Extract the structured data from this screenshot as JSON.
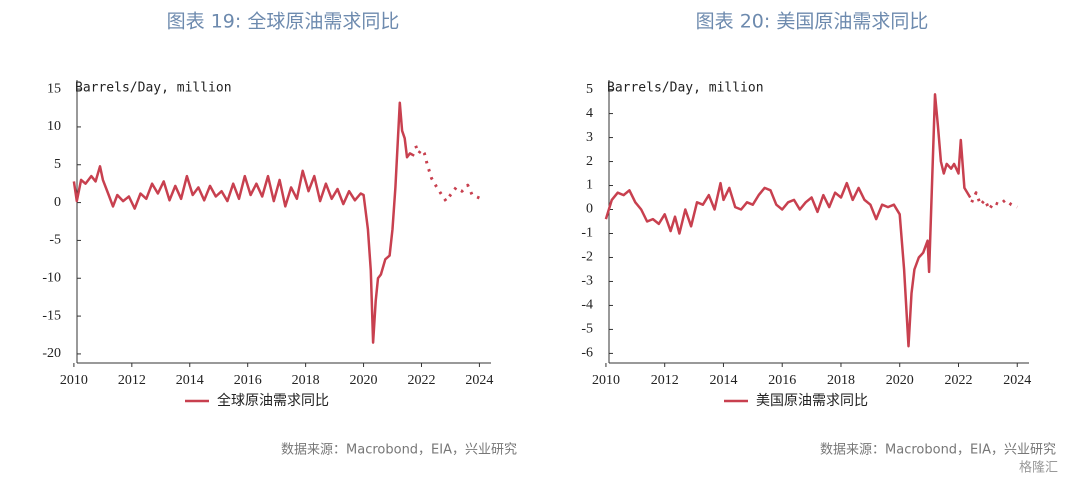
{
  "chart_data": [
    {
      "type": "line",
      "title": "图表 19: 全球原油需求同比",
      "y_label": "Barrels/Day, million",
      "source": "数据来源：Macrobond，EIA，兴业研究",
      "xlim": [
        2009.9,
        2024.4
      ],
      "xticks": [
        2010,
        2012,
        2014,
        2016,
        2018,
        2020,
        2022,
        2024
      ],
      "ylim": [
        -21.2,
        16.2
      ],
      "yticks": [
        15,
        10,
        5,
        0,
        -5,
        -10,
        -15,
        -20
      ],
      "series": [
        {
          "name": "全球原油需求同比",
          "color": "#c8404f",
          "style": "solid",
          "x": [
            2010.0,
            2010.1,
            2010.25,
            2010.4,
            2010.6,
            2010.75,
            2010.9,
            2011.0,
            2011.2,
            2011.35,
            2011.5,
            2011.7,
            2011.9,
            2012.1,
            2012.3,
            2012.5,
            2012.7,
            2012.9,
            2013.1,
            2013.3,
            2013.5,
            2013.7,
            2013.9,
            2014.1,
            2014.3,
            2014.5,
            2014.7,
            2014.9,
            2015.1,
            2015.3,
            2015.5,
            2015.7,
            2015.9,
            2016.1,
            2016.3,
            2016.5,
            2016.7,
            2016.9,
            2017.1,
            2017.3,
            2017.5,
            2017.7,
            2017.9,
            2018.1,
            2018.3,
            2018.5,
            2018.7,
            2018.9,
            2019.1,
            2019.3,
            2019.5,
            2019.7,
            2019.9,
            2020.0,
            2020.15,
            2020.25,
            2020.33,
            2020.42,
            2020.5,
            2020.6,
            2020.75,
            2020.9,
            2021.0,
            2021.1,
            2021.25,
            2021.33,
            2021.42,
            2021.5,
            2021.6,
            2021.75
          ],
          "values": [
            2.8,
            0.2,
            3.0,
            2.5,
            3.5,
            2.8,
            4.8,
            3.0,
            1.0,
            -0.5,
            1.0,
            0.2,
            0.8,
            -0.8,
            1.2,
            0.5,
            2.5,
            1.2,
            2.8,
            0.3,
            2.2,
            0.5,
            3.5,
            1.0,
            2.0,
            0.3,
            2.2,
            0.8,
            1.5,
            0.2,
            2.5,
            0.5,
            3.5,
            1.0,
            2.5,
            0.8,
            3.5,
            0.2,
            3.0,
            -0.5,
            2.0,
            0.5,
            4.2,
            1.5,
            3.5,
            0.2,
            2.5,
            0.5,
            1.8,
            -0.2,
            1.5,
            0.3,
            1.2,
            1.0,
            -3.5,
            -9.0,
            -18.5,
            -13.0,
            -10.0,
            -9.5,
            -7.5,
            -7.0,
            -3.5,
            2.0,
            13.2,
            9.5,
            8.5,
            6.0,
            6.5,
            6.2
          ]
        },
        {
          "color": "#c8404f",
          "style": "dotted",
          "x": [
            2021.8,
            2021.9,
            2022.0,
            2022.1,
            2022.2,
            2022.35,
            2022.5,
            2022.7,
            2022.85,
            2023.0,
            2023.2,
            2023.4,
            2023.6,
            2023.75,
            2024.0
          ],
          "values": [
            7.5,
            6.5,
            7.0,
            6.5,
            5.0,
            3.2,
            2.2,
            1.0,
            0.2,
            1.0,
            2.0,
            1.5,
            2.3,
            1.0,
            0.6
          ]
        }
      ]
    },
    {
      "type": "line",
      "title": "图表 20: 美国原油需求同比",
      "y_label": "Barrels/Day, million",
      "source": "数据来源：Macrobond，EIA，兴业研究",
      "xlim": [
        2009.9,
        2024.4
      ],
      "xticks": [
        2010,
        2012,
        2014,
        2016,
        2018,
        2020,
        2022,
        2024
      ],
      "ylim": [
        -6.4,
        5.4
      ],
      "yticks": [
        5,
        4,
        3,
        2,
        1,
        0,
        -1,
        -2,
        -3,
        -4,
        -5,
        -6
      ],
      "series": [
        {
          "name": "美国原油需求同比",
          "color": "#c8404f",
          "style": "solid",
          "x": [
            2010.0,
            2010.2,
            2010.4,
            2010.6,
            2010.8,
            2011.0,
            2011.2,
            2011.4,
            2011.6,
            2011.8,
            2012.0,
            2012.2,
            2012.35,
            2012.5,
            2012.7,
            2012.9,
            2013.1,
            2013.3,
            2013.5,
            2013.7,
            2013.9,
            2014.0,
            2014.2,
            2014.4,
            2014.6,
            2014.8,
            2015.0,
            2015.2,
            2015.4,
            2015.6,
            2015.8,
            2016.0,
            2016.2,
            2016.4,
            2016.6,
            2016.8,
            2017.0,
            2017.2,
            2017.4,
            2017.6,
            2017.8,
            2018.0,
            2018.2,
            2018.4,
            2018.6,
            2018.8,
            2019.0,
            2019.2,
            2019.4,
            2019.6,
            2019.8,
            2020.0,
            2020.15,
            2020.3,
            2020.4,
            2020.5,
            2020.65,
            2020.8,
            2020.95,
            2021.0,
            2021.2,
            2021.3,
            2021.4,
            2021.5,
            2021.6,
            2021.75,
            2021.85,
            2022.0,
            2022.08,
            2022.2,
            2022.4
          ],
          "values": [
            -0.4,
            0.4,
            0.7,
            0.6,
            0.8,
            0.3,
            0.0,
            -0.5,
            -0.4,
            -0.6,
            -0.2,
            -0.9,
            -0.3,
            -1.0,
            0.0,
            -0.7,
            0.3,
            0.2,
            0.6,
            0.0,
            1.1,
            0.4,
            0.9,
            0.1,
            0.0,
            0.3,
            0.2,
            0.6,
            0.9,
            0.8,
            0.2,
            0.0,
            0.3,
            0.4,
            0.0,
            0.3,
            0.5,
            -0.1,
            0.6,
            0.1,
            0.7,
            0.5,
            1.1,
            0.4,
            0.9,
            0.4,
            0.2,
            -0.4,
            0.2,
            0.1,
            0.2,
            -0.2,
            -2.5,
            -5.7,
            -3.5,
            -2.5,
            -2.0,
            -1.8,
            -1.3,
            -2.6,
            4.8,
            3.5,
            2.0,
            1.5,
            1.9,
            1.7,
            1.9,
            1.5,
            2.9,
            0.9,
            0.5
          ]
        },
        {
          "color": "#c8404f",
          "style": "dotted",
          "x": [
            2022.45,
            2022.6,
            2022.75,
            2022.9,
            2023.05,
            2023.2,
            2023.4,
            2023.6,
            2023.8,
            2024.0
          ],
          "values": [
            0.3,
            0.7,
            0.2,
            0.4,
            0.0,
            0.3,
            0.2,
            0.4,
            0.2,
            0.1
          ]
        }
      ]
    }
  ],
  "watermark": "格隆汇"
}
